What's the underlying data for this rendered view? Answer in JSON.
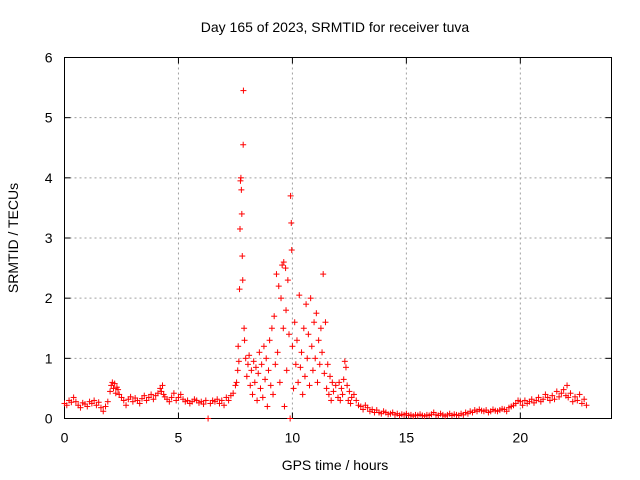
{
  "chart_data": {
    "type": "scatter",
    "title": "Day 165 of 2023, SRMTID for receiver tuva",
    "xlabel": "GPS time / hours",
    "ylabel": "SRMTID / TECUs",
    "xlim": [
      0,
      24
    ],
    "ylim": [
      0,
      6
    ],
    "xticks": [
      "0",
      "5",
      "10",
      "15",
      "20"
    ],
    "yticks": [
      "0",
      "1",
      "2",
      "3",
      "4",
      "5",
      "6"
    ],
    "grid": true,
    "marker": "+",
    "color": "#ff0000",
    "series": [
      {
        "name": "SRMTID",
        "points": [
          [
            0.0,
            0.25
          ],
          [
            0.1,
            0.22
          ],
          [
            0.2,
            0.3
          ],
          [
            0.3,
            0.27
          ],
          [
            0.4,
            0.35
          ],
          [
            0.5,
            0.28
          ],
          [
            0.6,
            0.22
          ],
          [
            0.7,
            0.18
          ],
          [
            0.8,
            0.26
          ],
          [
            0.9,
            0.24
          ],
          [
            1.0,
            0.2
          ],
          [
            1.1,
            0.28
          ],
          [
            1.2,
            0.25
          ],
          [
            1.3,
            0.3
          ],
          [
            1.4,
            0.22
          ],
          [
            1.5,
            0.27
          ],
          [
            1.6,
            0.18
          ],
          [
            1.7,
            0.12
          ],
          [
            1.8,
            0.2
          ],
          [
            1.9,
            0.28
          ],
          [
            2.0,
            0.45
          ],
          [
            2.05,
            0.55
          ],
          [
            2.1,
            0.6
          ],
          [
            2.15,
            0.5
          ],
          [
            2.2,
            0.58
          ],
          [
            2.25,
            0.42
          ],
          [
            2.3,
            0.52
          ],
          [
            2.35,
            0.48
          ],
          [
            2.4,
            0.4
          ],
          [
            2.5,
            0.35
          ],
          [
            2.6,
            0.3
          ],
          [
            2.7,
            0.22
          ],
          [
            2.8,
            0.32
          ],
          [
            2.9,
            0.36
          ],
          [
            3.0,
            0.28
          ],
          [
            3.1,
            0.34
          ],
          [
            3.2,
            0.3
          ],
          [
            3.3,
            0.25
          ],
          [
            3.4,
            0.33
          ],
          [
            3.5,
            0.38
          ],
          [
            3.6,
            0.3
          ],
          [
            3.7,
            0.35
          ],
          [
            3.8,
            0.4
          ],
          [
            3.9,
            0.32
          ],
          [
            4.0,
            0.38
          ],
          [
            4.1,
            0.42
          ],
          [
            4.2,
            0.5
          ],
          [
            4.25,
            0.45
          ],
          [
            4.3,
            0.55
          ],
          [
            4.35,
            0.4
          ],
          [
            4.4,
            0.36
          ],
          [
            4.5,
            0.32
          ],
          [
            4.6,
            0.28
          ],
          [
            4.7,
            0.35
          ],
          [
            4.8,
            0.42
          ],
          [
            4.9,
            0.3
          ],
          [
            5.0,
            0.35
          ],
          [
            5.1,
            0.4
          ],
          [
            5.2,
            0.32
          ],
          [
            5.3,
            0.28
          ],
          [
            5.4,
            0.3
          ],
          [
            5.5,
            0.25
          ],
          [
            5.6,
            0.28
          ],
          [
            5.7,
            0.32
          ],
          [
            5.8,
            0.3
          ],
          [
            5.9,
            0.26
          ],
          [
            6.0,
            0.28
          ],
          [
            6.1,
            0.24
          ],
          [
            6.2,
            0.3
          ],
          [
            6.3,
            0.0
          ],
          [
            6.4,
            0.25
          ],
          [
            6.5,
            0.3
          ],
          [
            6.6,
            0.28
          ],
          [
            6.7,
            0.32
          ],
          [
            6.8,
            0.25
          ],
          [
            6.9,
            0.3
          ],
          [
            7.0,
            0.22
          ],
          [
            7.1,
            0.35
          ],
          [
            7.2,
            0.3
          ],
          [
            7.3,
            0.38
          ],
          [
            7.4,
            0.42
          ],
          [
            7.5,
            0.55
          ],
          [
            7.55,
            0.6
          ],
          [
            7.6,
            0.8
          ],
          [
            7.62,
            1.2
          ],
          [
            7.65,
            0.95
          ],
          [
            7.68,
            2.15
          ],
          [
            7.7,
            3.15
          ],
          [
            7.72,
            3.95
          ],
          [
            7.74,
            4.0
          ],
          [
            7.76,
            3.8
          ],
          [
            7.78,
            3.4
          ],
          [
            7.8,
            2.7
          ],
          [
            7.82,
            2.3
          ],
          [
            7.84,
            4.55
          ],
          [
            7.85,
            5.45
          ],
          [
            7.88,
            1.5
          ],
          [
            7.9,
            1.3
          ],
          [
            7.95,
            1.0
          ],
          [
            8.0,
            0.7
          ],
          [
            8.05,
            0.9
          ],
          [
            8.1,
            1.05
          ],
          [
            8.15,
            0.55
          ],
          [
            8.2,
            0.8
          ],
          [
            8.25,
            0.4
          ],
          [
            8.3,
            0.95
          ],
          [
            8.35,
            0.6
          ],
          [
            8.4,
            0.85
          ],
          [
            8.45,
            0.3
          ],
          [
            8.5,
            0.75
          ],
          [
            8.55,
            1.1
          ],
          [
            8.6,
            0.5
          ],
          [
            8.65,
            0.9
          ],
          [
            8.7,
            0.35
          ],
          [
            8.75,
            1.2
          ],
          [
            8.8,
            0.65
          ],
          [
            8.85,
            1.0
          ],
          [
            8.9,
            0.2
          ],
          [
            8.95,
            0.8
          ],
          [
            9.0,
            1.3
          ],
          [
            9.05,
            0.55
          ],
          [
            9.1,
            1.5
          ],
          [
            9.15,
            0.4
          ],
          [
            9.2,
            1.7
          ],
          [
            9.25,
            0.9
          ],
          [
            9.3,
            2.4
          ],
          [
            9.35,
            1.1
          ],
          [
            9.4,
            2.2
          ],
          [
            9.45,
            0.6
          ],
          [
            9.5,
            2.0
          ],
          [
            9.55,
            2.55
          ],
          [
            9.6,
            1.5
          ],
          [
            9.62,
            2.6
          ],
          [
            9.65,
            0.2
          ],
          [
            9.7,
            2.5
          ],
          [
            9.72,
            1.8
          ],
          [
            9.75,
            0.8
          ],
          [
            9.8,
            2.3
          ],
          [
            9.85,
            1.4
          ],
          [
            9.9,
            0.0
          ],
          [
            9.92,
            3.7
          ],
          [
            9.95,
            3.25
          ],
          [
            9.97,
            2.8
          ],
          [
            10.0,
            1.2
          ],
          [
            10.05,
            0.5
          ],
          [
            10.1,
            1.6
          ],
          [
            10.15,
            0.9
          ],
          [
            10.2,
            1.3
          ],
          [
            10.25,
            0.6
          ],
          [
            10.3,
            2.05
          ],
          [
            10.35,
            0.85
          ],
          [
            10.4,
            1.1
          ],
          [
            10.45,
            0.4
          ],
          [
            10.5,
            1.5
          ],
          [
            10.55,
            0.7
          ],
          [
            10.6,
            1.9
          ],
          [
            10.65,
            1.0
          ],
          [
            10.7,
            1.4
          ],
          [
            10.75,
            0.55
          ],
          [
            10.8,
            2.0
          ],
          [
            10.85,
            1.2
          ],
          [
            10.9,
            0.8
          ],
          [
            10.95,
            1.6
          ],
          [
            11.0,
            1.0
          ],
          [
            11.05,
            1.75
          ],
          [
            11.1,
            0.6
          ],
          [
            11.15,
            1.3
          ],
          [
            11.2,
            0.9
          ],
          [
            11.25,
            1.5
          ],
          [
            11.3,
            1.1
          ],
          [
            11.35,
            2.4
          ],
          [
            11.4,
            0.75
          ],
          [
            11.45,
            1.6
          ],
          [
            11.5,
            0.5
          ],
          [
            11.55,
            0.9
          ],
          [
            11.6,
            0.4
          ],
          [
            11.65,
            0.7
          ],
          [
            11.7,
            0.3
          ],
          [
            11.75,
            0.6
          ],
          [
            11.8,
            0.45
          ],
          [
            11.9,
            0.55
          ],
          [
            12.0,
            0.35
          ],
          [
            12.05,
            0.6
          ],
          [
            12.1,
            0.3
          ],
          [
            12.15,
            0.5
          ],
          [
            12.2,
            0.4
          ],
          [
            12.25,
            0.65
          ],
          [
            12.3,
            0.95
          ],
          [
            12.35,
            0.85
          ],
          [
            12.4,
            0.55
          ],
          [
            12.45,
            0.3
          ],
          [
            12.5,
            0.45
          ],
          [
            12.55,
            0.25
          ],
          [
            12.6,
            0.35
          ],
          [
            12.7,
            0.4
          ],
          [
            12.8,
            0.3
          ],
          [
            12.9,
            0.22
          ],
          [
            13.0,
            0.2
          ],
          [
            13.1,
            0.15
          ],
          [
            13.2,
            0.22
          ],
          [
            13.3,
            0.18
          ],
          [
            13.4,
            0.12
          ],
          [
            13.5,
            0.15
          ],
          [
            13.6,
            0.1
          ],
          [
            13.7,
            0.14
          ],
          [
            13.8,
            0.1
          ],
          [
            13.9,
            0.08
          ],
          [
            14.0,
            0.12
          ],
          [
            14.1,
            0.1
          ],
          [
            14.2,
            0.07
          ],
          [
            14.3,
            0.08
          ],
          [
            14.4,
            0.1
          ],
          [
            14.5,
            0.06
          ],
          [
            14.6,
            0.08
          ],
          [
            14.7,
            0.05
          ],
          [
            14.8,
            0.07
          ],
          [
            14.9,
            0.06
          ],
          [
            15.0,
            0.08
          ],
          [
            15.1,
            0.05
          ],
          [
            15.2,
            0.06
          ],
          [
            15.3,
            0.04
          ],
          [
            15.4,
            0.06
          ],
          [
            15.5,
            0.05
          ],
          [
            15.6,
            0.07
          ],
          [
            15.7,
            0.05
          ],
          [
            15.8,
            0.04
          ],
          [
            15.9,
            0.06
          ],
          [
            16.0,
            0.05
          ],
          [
            16.1,
            0.07
          ],
          [
            16.2,
            0.1
          ],
          [
            16.3,
            0.06
          ],
          [
            16.4,
            0.05
          ],
          [
            16.5,
            0.08
          ],
          [
            16.6,
            0.06
          ],
          [
            16.7,
            0.04
          ],
          [
            16.8,
            0.06
          ],
          [
            16.9,
            0.08
          ],
          [
            17.0,
            0.05
          ],
          [
            17.1,
            0.07
          ],
          [
            17.2,
            0.06
          ],
          [
            17.3,
            0.05
          ],
          [
            17.4,
            0.08
          ],
          [
            17.5,
            0.06
          ],
          [
            17.6,
            0.1
          ],
          [
            17.7,
            0.08
          ],
          [
            17.8,
            0.12
          ],
          [
            17.9,
            0.1
          ],
          [
            18.0,
            0.14
          ],
          [
            18.1,
            0.12
          ],
          [
            18.2,
            0.15
          ],
          [
            18.3,
            0.13
          ],
          [
            18.4,
            0.12
          ],
          [
            18.5,
            0.14
          ],
          [
            18.6,
            0.1
          ],
          [
            18.7,
            0.12
          ],
          [
            18.8,
            0.15
          ],
          [
            18.9,
            0.13
          ],
          [
            19.0,
            0.12
          ],
          [
            19.1,
            0.14
          ],
          [
            19.2,
            0.16
          ],
          [
            19.3,
            0.15
          ],
          [
            19.4,
            0.12
          ],
          [
            19.5,
            0.18
          ],
          [
            19.6,
            0.2
          ],
          [
            19.7,
            0.22
          ],
          [
            19.8,
            0.25
          ],
          [
            19.9,
            0.3
          ],
          [
            20.0,
            0.28
          ],
          [
            20.1,
            0.22
          ],
          [
            20.2,
            0.3
          ],
          [
            20.3,
            0.25
          ],
          [
            20.4,
            0.28
          ],
          [
            20.5,
            0.32
          ],
          [
            20.6,
            0.26
          ],
          [
            20.7,
            0.3
          ],
          [
            20.8,
            0.35
          ],
          [
            20.9,
            0.28
          ],
          [
            21.0,
            0.32
          ],
          [
            21.1,
            0.4
          ],
          [
            21.2,
            0.35
          ],
          [
            21.3,
            0.3
          ],
          [
            21.4,
            0.38
          ],
          [
            21.5,
            0.32
          ],
          [
            21.6,
            0.45
          ],
          [
            21.7,
            0.36
          ],
          [
            21.8,
            0.42
          ],
          [
            21.9,
            0.48
          ],
          [
            22.0,
            0.38
          ],
          [
            22.05,
            0.55
          ],
          [
            22.1,
            0.35
          ],
          [
            22.2,
            0.42
          ],
          [
            22.3,
            0.28
          ],
          [
            22.4,
            0.36
          ],
          [
            22.5,
            0.3
          ],
          [
            22.6,
            0.4
          ],
          [
            22.7,
            0.25
          ],
          [
            22.8,
            0.32
          ],
          [
            22.9,
            0.22
          ]
        ]
      }
    ]
  }
}
